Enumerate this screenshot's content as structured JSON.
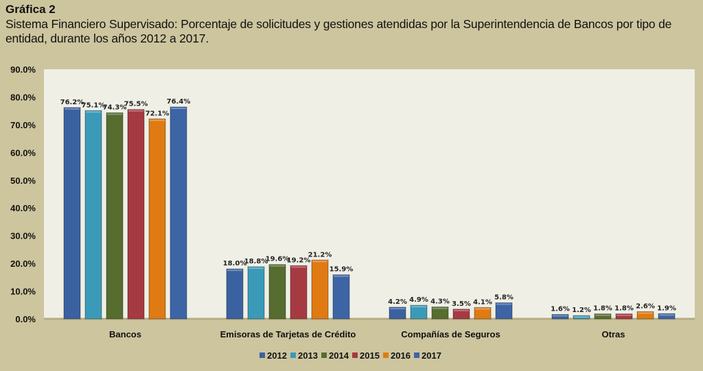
{
  "chart_data": {
    "type": "bar",
    "title": "Gráfica 2",
    "subtitle": "Sistema Financiero Supervisado: Porcentaje de solicitudes y gestiones atendidas por la Superintendencia de Bancos por tipo de entidad, durante los años 2012 a 2017.",
    "xlabel": "",
    "ylabel": "",
    "ylim": [
      0,
      90
    ],
    "yticks": [
      "0.0%",
      "10.0%",
      "20.0%",
      "30.0%",
      "40.0%",
      "50.0%",
      "60.0%",
      "70.0%",
      "80.0%",
      "90.0%"
    ],
    "categories": [
      "Bancos",
      "Emisoras de Tarjetas de Crédito",
      "Compañías de Seguros",
      "Otras"
    ],
    "legend_position": "bottom",
    "series": [
      {
        "name": "2012",
        "color": "#3b62a0",
        "values": [
          76.2,
          18.0,
          4.2,
          1.6
        ],
        "labels": [
          "76.2%",
          "18.0%",
          "4.2%",
          "1.6%"
        ]
      },
      {
        "name": "2013",
        "color": "#3b9ab8",
        "values": [
          75.1,
          18.8,
          4.9,
          1.2
        ],
        "labels": [
          "75.1%",
          "18.8%",
          "4.9%",
          "1.2%"
        ]
      },
      {
        "name": "2014",
        "color": "#566d2f",
        "values": [
          74.3,
          19.6,
          4.3,
          1.8
        ],
        "labels": [
          "74.3%",
          "19.6%",
          "4.3%",
          "1.8%"
        ]
      },
      {
        "name": "2015",
        "color": "#a63a42",
        "values": [
          75.5,
          19.2,
          3.5,
          1.8
        ],
        "labels": [
          "75.5%",
          "19.2%",
          "3.5%",
          "1.8%"
        ]
      },
      {
        "name": "2016",
        "color": "#e07a12",
        "values": [
          72.1,
          21.2,
          4.1,
          2.6
        ],
        "labels": [
          "72.1%",
          "21.2%",
          "4.1%",
          "2.6%"
        ]
      },
      {
        "name": "2017",
        "color": "#3d65a6",
        "values": [
          76.4,
          15.9,
          5.8,
          1.9
        ],
        "labels": [
          "76.4%",
          "15.9%",
          "5.8%",
          "1.9%"
        ]
      }
    ]
  }
}
